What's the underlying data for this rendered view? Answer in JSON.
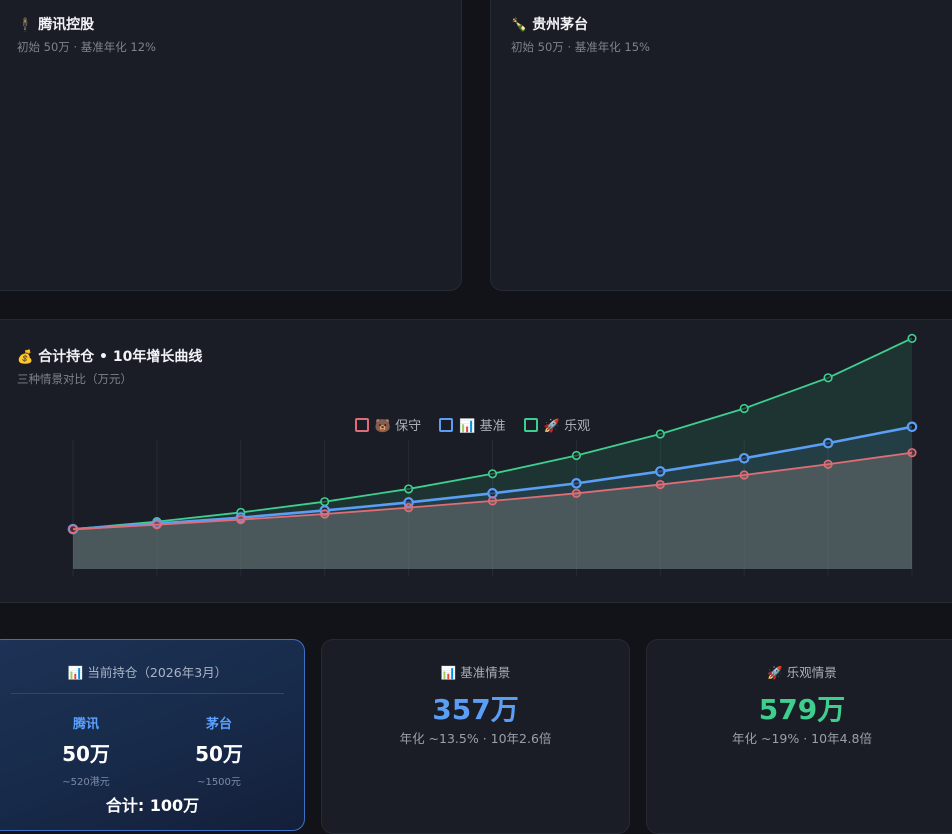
{
  "tencent_card": {
    "emoji": "🕴",
    "title": "腾讯控股",
    "subtitle": "初始 50万 · 基准年化 12%"
  },
  "moutai_card": {
    "emoji": "🍾",
    "title": "贵州茅台",
    "subtitle": "初始 50万 · 基准年化 15%"
  },
  "combined_card": {
    "emoji": "💰",
    "title": "合计持仓 • 10年增长曲线",
    "subtitle": "三种情景对比（万元）"
  },
  "chart_data": {
    "type": "line",
    "x": [
      0,
      1,
      2,
      3,
      4,
      5,
      6,
      7,
      8,
      9,
      10
    ],
    "ylim": [
      0,
      600
    ],
    "grid": true,
    "legend": "top-center",
    "series": [
      {
        "name": "🐻 保守",
        "color": "#e06c75",
        "values": [
          100,
          111,
          124,
          138,
          154,
          171,
          190,
          212,
          236,
          263,
          292
        ]
      },
      {
        "name": "📊 基准",
        "color": "#5b9ef5",
        "values": [
          100,
          114,
          129,
          147,
          167,
          190,
          215,
          245,
          278,
          316,
          357
        ]
      },
      {
        "name": "🚀 乐观",
        "color": "#3ecf8e",
        "values": [
          100,
          119,
          142,
          169,
          201,
          239,
          285,
          339,
          403,
          480,
          579
        ]
      }
    ]
  },
  "holding_card": {
    "title": "📊 当前持仓（2026年3月）",
    "tencent": {
      "name": "腾讯",
      "value": "50万",
      "note": "~520港元"
    },
    "moutai": {
      "name": "茅台",
      "value": "50万",
      "note": "~1500元"
    },
    "total": "合计: 100万"
  },
  "base_card": {
    "title": "📊 基准情景",
    "value": "357万",
    "desc": "年化 ~13.5% · 10年2.6倍",
    "color": "#5b9ef5"
  },
  "optimistic_card": {
    "title": "🚀 乐观情景",
    "value": "579万",
    "desc": "年化 ~19% · 10年4.8倍",
    "color": "#3ecf8e"
  }
}
